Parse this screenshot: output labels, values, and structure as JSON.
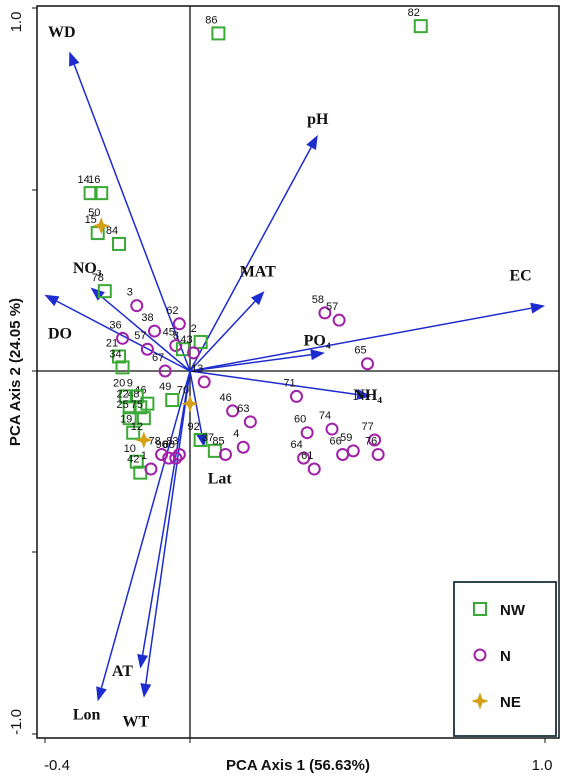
{
  "chart_data": {
    "type": "scatter",
    "subtype": "PCA biplot",
    "xlabel": "PCA Axis 1 (56.63%)",
    "ylabel": "PCA Axis 2 (24.05 %)",
    "xlim": [
      -0.42,
      1.02
    ],
    "ylim": [
      -1.02,
      1.02
    ],
    "x_tick_labels": [
      "-0.4",
      "1.0"
    ],
    "y_tick_labels": [
      "1.0",
      "-1.0"
    ],
    "colors": {
      "NW": "#3aa935",
      "N": "#a020a8",
      "NE": "#d4a017",
      "arrow": "#1d2ccf"
    },
    "legend": {
      "placement": "bottom-right",
      "entries": [
        {
          "group": "NW",
          "label": "NW",
          "marker": "square"
        },
        {
          "group": "N",
          "label": "N",
          "marker": "circle"
        },
        {
          "group": "NE",
          "label": "NE",
          "marker": "star"
        }
      ]
    },
    "vectors": [
      {
        "label": "WD",
        "x": -0.34,
        "y": 0.88,
        "lx": -0.4,
        "ly": 0.92
      },
      {
        "label": "pH",
        "x": 0.36,
        "y": 0.65,
        "lx": 0.33,
        "ly": 0.68
      },
      {
        "label": "MAT",
        "x": 0.21,
        "y": 0.22,
        "lx": 0.14,
        "ly": 0.26
      },
      {
        "label": "EC",
        "x": 1.0,
        "y": 0.18,
        "lx": 0.9,
        "ly": 0.25
      },
      {
        "label": "NO₃",
        "x": -0.28,
        "y": 0.23,
        "lx": -0.33,
        "ly": 0.27
      },
      {
        "label": "DO",
        "x": -0.41,
        "y": 0.21,
        "lx": -0.4,
        "ly": 0.09
      },
      {
        "label": "PO₄",
        "x": 0.38,
        "y": 0.05,
        "lx": 0.32,
        "ly": 0.07
      },
      {
        "label": "NH₄",
        "x": 0.51,
        "y": -0.07,
        "lx": 0.46,
        "ly": -0.08
      },
      {
        "label": "Lat",
        "x": 0.04,
        "y": -0.21,
        "lx": 0.05,
        "ly": -0.31
      },
      {
        "label": "AT",
        "x": -0.14,
        "y": -0.82,
        "lx": -0.22,
        "ly": -0.84
      },
      {
        "label": "Lon",
        "x": -0.26,
        "y": -0.91,
        "lx": -0.33,
        "ly": -0.96
      },
      {
        "label": "WT",
        "x": -0.13,
        "y": -0.9,
        "lx": -0.19,
        "ly": -0.98
      }
    ],
    "points": [
      {
        "id": "86",
        "group": "NW",
        "x": 0.08,
        "y": 0.93
      },
      {
        "id": "82",
        "group": "NW",
        "x": 0.65,
        "y": 0.95
      },
      {
        "id": "16",
        "group": "NW",
        "x": -0.25,
        "y": 0.49
      },
      {
        "id": "14",
        "group": "NW",
        "x": -0.28,
        "y": 0.49
      },
      {
        "id": "15",
        "group": "NW",
        "x": -0.26,
        "y": 0.38
      },
      {
        "id": "50",
        "group": "NE",
        "x": -0.25,
        "y": 0.4
      },
      {
        "id": "84",
        "group": "NW",
        "x": -0.2,
        "y": 0.35
      },
      {
        "id": "78",
        "group": "NW",
        "x": -0.24,
        "y": 0.22
      },
      {
        "id": "3",
        "group": "N",
        "x": -0.15,
        "y": 0.18
      },
      {
        "id": "38",
        "group": "N",
        "x": -0.1,
        "y": 0.11
      },
      {
        "id": "36",
        "group": "N",
        "x": -0.19,
        "y": 0.09
      },
      {
        "id": "62",
        "group": "N",
        "x": -0.03,
        "y": 0.13
      },
      {
        "id": "45",
        "group": "N",
        "x": -0.04,
        "y": 0.07
      },
      {
        "id": "2",
        "group": "NW",
        "x": 0.03,
        "y": 0.08
      },
      {
        "id": "8",
        "group": "NW",
        "x": -0.02,
        "y": 0.06
      },
      {
        "id": "43",
        "group": "N",
        "x": 0.01,
        "y": 0.05
      },
      {
        "id": "57",
        "group": "N",
        "x": -0.12,
        "y": 0.06
      },
      {
        "id": "21",
        "group": "NW",
        "x": -0.2,
        "y": 0.04
      },
      {
        "id": "34",
        "group": "NW",
        "x": -0.19,
        "y": 0.01
      },
      {
        "id": "67",
        "group": "N",
        "x": -0.07,
        "y": 0.0
      },
      {
        "id": "20",
        "group": "NW",
        "x": -0.18,
        "y": -0.07
      },
      {
        "id": "22",
        "group": "NW",
        "x": -0.17,
        "y": -0.1
      },
      {
        "id": "25",
        "group": "NW",
        "x": -0.17,
        "y": -0.13
      },
      {
        "id": "48",
        "group": "NW",
        "x": -0.14,
        "y": -0.1
      },
      {
        "id": "46",
        "group": "NW",
        "x": -0.12,
        "y": -0.09
      },
      {
        "id": "9",
        "group": "NW",
        "x": -0.15,
        "y": -0.07
      },
      {
        "id": "49",
        "group": "NW",
        "x": -0.05,
        "y": -0.08
      },
      {
        "id": "19",
        "group": "NW",
        "x": -0.16,
        "y": -0.17
      },
      {
        "id": "75",
        "group": "NW",
        "x": -0.13,
        "y": -0.13
      },
      {
        "id": "12",
        "group": "NE",
        "x": -0.13,
        "y": -0.19
      },
      {
        "id": "10",
        "group": "NW",
        "x": -0.15,
        "y": -0.25
      },
      {
        "id": "42",
        "group": "NW",
        "x": -0.14,
        "y": -0.28
      },
      {
        "id": "1",
        "group": "N",
        "x": -0.11,
        "y": -0.27
      },
      {
        "id": "78b",
        "label": "78",
        "group": "N",
        "x": -0.08,
        "y": -0.23
      },
      {
        "id": "96",
        "group": "N",
        "x": -0.06,
        "y": -0.24
      },
      {
        "id": "68",
        "group": "N",
        "x": -0.04,
        "y": -0.24
      },
      {
        "id": "83",
        "group": "N",
        "x": -0.03,
        "y": -0.23
      },
      {
        "id": "13",
        "group": "N",
        "x": 0.04,
        "y": -0.03
      },
      {
        "id": "70",
        "group": "NE",
        "x": 0.0,
        "y": -0.09
      },
      {
        "id": "92",
        "group": "NW",
        "x": 0.03,
        "y": -0.19
      },
      {
        "id": "37",
        "group": "NW",
        "x": 0.07,
        "y": -0.22
      },
      {
        "id": "85",
        "group": "N",
        "x": 0.1,
        "y": -0.23
      },
      {
        "id": "46b",
        "label": "46",
        "group": "N",
        "x": 0.12,
        "y": -0.11
      },
      {
        "id": "63",
        "group": "N",
        "x": 0.17,
        "y": -0.14
      },
      {
        "id": "4",
        "group": "N",
        "x": 0.15,
        "y": -0.21
      },
      {
        "id": "58",
        "group": "N",
        "x": 0.38,
        "y": 0.16
      },
      {
        "id": "57b",
        "label": "57",
        "group": "N",
        "x": 0.42,
        "y": 0.14
      },
      {
        "id": "71",
        "group": "N",
        "x": 0.3,
        "y": -0.07
      },
      {
        "id": "65",
        "group": "N",
        "x": 0.5,
        "y": 0.02
      },
      {
        "id": "74",
        "group": "N",
        "x": 0.4,
        "y": -0.16
      },
      {
        "id": "60",
        "group": "N",
        "x": 0.33,
        "y": -0.17
      },
      {
        "id": "64",
        "group": "N",
        "x": 0.32,
        "y": -0.24
      },
      {
        "id": "61",
        "group": "N",
        "x": 0.35,
        "y": -0.27
      },
      {
        "id": "66",
        "group": "N",
        "x": 0.43,
        "y": -0.23
      },
      {
        "id": "59",
        "group": "N",
        "x": 0.46,
        "y": -0.22
      },
      {
        "id": "77",
        "group": "N",
        "x": 0.52,
        "y": -0.19
      },
      {
        "id": "76",
        "group": "N",
        "x": 0.53,
        "y": -0.23
      }
    ]
  }
}
